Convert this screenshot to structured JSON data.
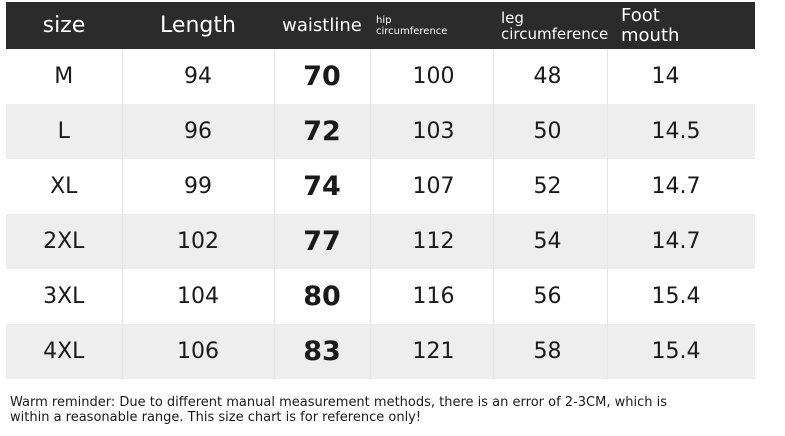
{
  "headers": {
    "size": "size",
    "length": "Length",
    "waistline": "waistline",
    "hip_line1": "hip",
    "hip_line2": "circumference",
    "leg_line1": "leg",
    "leg_line2": "circumference",
    "foot_line1": "Foot",
    "foot_line2": "mouth"
  },
  "rows": [
    {
      "size": "M",
      "length": "94",
      "waistline": "70",
      "hip": "100",
      "leg": "48",
      "foot": "14"
    },
    {
      "size": "L",
      "length": "96",
      "waistline": "72",
      "hip": "103",
      "leg": "50",
      "foot": "14.5"
    },
    {
      "size": "XL",
      "length": "99",
      "waistline": "74",
      "hip": "107",
      "leg": "52",
      "foot": "14.7"
    },
    {
      "size": "2XL",
      "length": "102",
      "waistline": "77",
      "hip": "112",
      "leg": "54",
      "foot": "14.7"
    },
    {
      "size": "3XL",
      "length": "104",
      "waistline": "80",
      "hip": "116",
      "leg": "56",
      "foot": "15.4"
    },
    {
      "size": "4XL",
      "length": "106",
      "waistline": "83",
      "hip": "121",
      "leg": "58",
      "foot": "15.4"
    }
  ],
  "note": {
    "line1": "Warm reminder: Due to different manual measurement methods, there is an error of 2-3CM, which is",
    "line2": "within a reasonable range. This size chart is for reference only!"
  },
  "colors": {
    "header_bg": "#2b2b2b",
    "header_text": "#ffffff",
    "row_alt_bg": "#eeeeee"
  }
}
